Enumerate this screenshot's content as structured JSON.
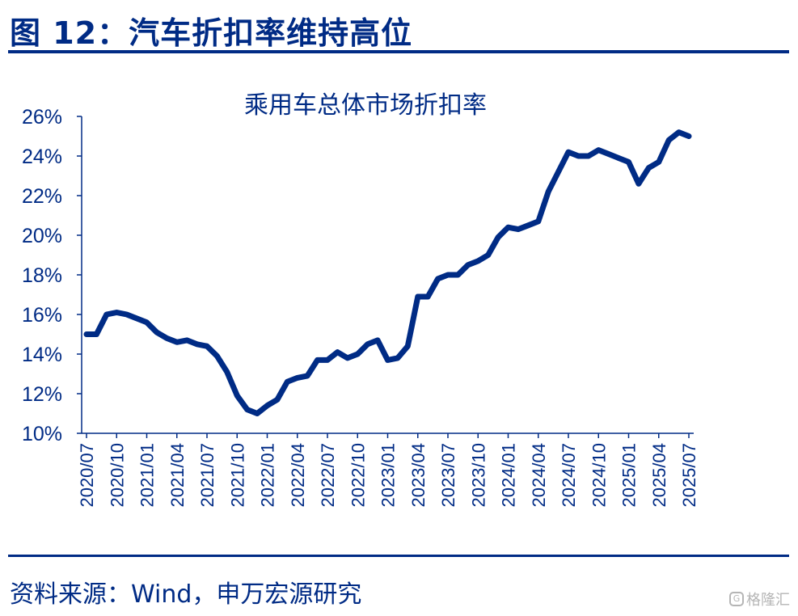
{
  "figure": {
    "title": "图 12：汽车折扣率维持高位",
    "source": "资料来源：Wind，申万宏源研究",
    "watermark": "格隆汇",
    "accent_color": "#002B85"
  },
  "chart_data": {
    "type": "line",
    "title": "乘用车总体市场折扣率",
    "xlabel": "",
    "ylabel": "",
    "ylim": [
      10,
      26
    ],
    "y_ticks": [
      "10%",
      "12%",
      "14%",
      "16%",
      "18%",
      "20%",
      "22%",
      "24%",
      "26%"
    ],
    "x_ticks": [
      "2020/07",
      "2020/10",
      "2021/01",
      "2021/04",
      "2021/07",
      "2021/10",
      "2022/01",
      "2022/04",
      "2022/07",
      "2022/10",
      "2023/01",
      "2023/04",
      "2023/07",
      "2023/10",
      "2024/01",
      "2024/04",
      "2024/07",
      "2024/10",
      "2025/01",
      "2025/04",
      "2025/07"
    ],
    "grid": false,
    "legend": "none",
    "line_color": "#002B85",
    "series": [
      {
        "x": [
          "2020/07",
          "2020/08",
          "2020/09",
          "2020/10",
          "2020/11",
          "2020/12",
          "2021/01",
          "2021/02",
          "2021/03",
          "2021/04",
          "2021/05",
          "2021/06",
          "2021/07",
          "2021/08",
          "2021/09",
          "2021/10",
          "2021/11",
          "2021/12",
          "2022/01",
          "2022/02",
          "2022/03",
          "2022/04",
          "2022/05",
          "2022/06",
          "2022/07",
          "2022/08",
          "2022/09",
          "2022/10",
          "2022/11",
          "2022/12",
          "2023/01",
          "2023/02",
          "2023/03",
          "2023/04",
          "2023/05",
          "2023/06",
          "2023/07",
          "2023/08",
          "2023/09",
          "2023/10",
          "2023/11",
          "2023/12",
          "2024/01",
          "2024/02",
          "2024/03",
          "2024/04",
          "2024/05",
          "2024/06",
          "2024/07",
          "2024/08",
          "2024/09",
          "2024/10",
          "2024/11",
          "2024/12",
          "2025/01",
          "2025/02",
          "2025/03",
          "2025/04",
          "2025/05",
          "2025/06",
          "2025/07"
        ],
        "values": [
          15.0,
          15.0,
          16.0,
          16.1,
          16.0,
          15.8,
          15.6,
          15.1,
          14.8,
          14.6,
          14.7,
          14.5,
          14.4,
          13.9,
          13.1,
          11.9,
          11.2,
          11.0,
          11.4,
          11.7,
          12.6,
          12.8,
          12.9,
          13.7,
          13.7,
          14.1,
          13.8,
          14.0,
          14.5,
          14.7,
          13.7,
          13.8,
          14.4,
          16.9,
          16.9,
          17.8,
          18.0,
          18.0,
          18.5,
          18.7,
          19.0,
          19.9,
          20.4,
          20.3,
          20.5,
          20.7,
          22.2,
          23.2,
          24.2,
          24.0,
          24.0,
          24.3,
          24.1,
          23.9,
          23.7,
          22.6,
          23.4,
          23.7,
          24.8,
          25.2,
          25.0
        ]
      }
    ]
  }
}
